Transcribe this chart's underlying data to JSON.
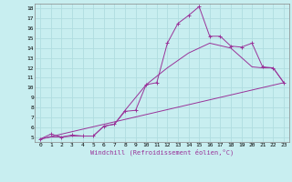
{
  "xlabel": "Windchill (Refroidissement éolien,°C)",
  "bg_color": "#c8eef0",
  "line_color": "#993399",
  "grid_color": "#b0dde0",
  "xlim": [
    -0.5,
    23.5
  ],
  "ylim": [
    4.5,
    18.5
  ],
  "xticks": [
    0,
    1,
    2,
    3,
    4,
    5,
    6,
    7,
    8,
    9,
    10,
    11,
    12,
    13,
    14,
    15,
    16,
    17,
    18,
    19,
    20,
    21,
    22,
    23
  ],
  "yticks": [
    5,
    6,
    7,
    8,
    9,
    10,
    11,
    12,
    13,
    14,
    15,
    16,
    17,
    18
  ],
  "curve1_x": [
    0,
    1,
    2,
    3,
    4,
    5,
    6,
    7,
    8,
    9,
    10,
    11,
    12,
    13,
    14,
    15,
    16,
    17,
    18,
    19,
    20,
    21,
    22,
    23
  ],
  "curve1_y": [
    4.8,
    5.3,
    5.0,
    5.2,
    5.1,
    5.1,
    6.1,
    6.3,
    7.6,
    7.7,
    10.3,
    10.5,
    14.5,
    16.5,
    17.3,
    18.2,
    15.2,
    15.2,
    14.2,
    14.1,
    14.5,
    12.1,
    12.0,
    10.5
  ],
  "curve2_x": [
    0,
    23
  ],
  "curve2_y": [
    4.8,
    10.5
  ],
  "curve3_x": [
    0,
    1,
    2,
    3,
    4,
    5,
    6,
    7,
    8,
    10,
    12,
    14,
    16,
    18,
    20,
    21,
    22,
    23
  ],
  "curve3_y": [
    4.8,
    5.0,
    5.0,
    5.1,
    5.1,
    5.1,
    6.1,
    6.3,
    7.7,
    10.3,
    12.0,
    13.5,
    14.5,
    14.0,
    12.1,
    12.0,
    12.0,
    10.5
  ]
}
